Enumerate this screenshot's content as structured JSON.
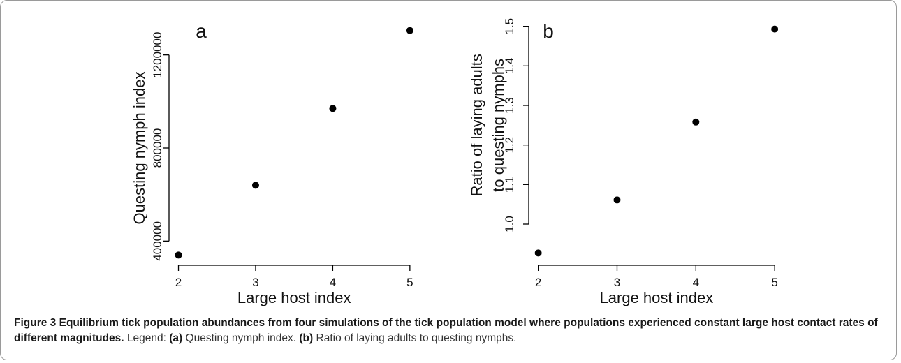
{
  "chart_data": [
    {
      "type": "scatter",
      "panel_label": "a",
      "xlabel": "Large host index",
      "ylabel_lines": [
        "Questing nymph index"
      ],
      "x": [
        2,
        3,
        4,
        5
      ],
      "y": [
        340000,
        640000,
        970000,
        1305000
      ],
      "xticks": [
        "2",
        "3",
        "4",
        "5"
      ],
      "yticks": [
        400000,
        800000,
        1200000
      ],
      "ytick_labels": [
        "400000",
        "800000",
        "1200000"
      ],
      "xlim": [
        1.95,
        5.3
      ],
      "ylim": [
        320000,
        1340000
      ],
      "grid": false,
      "marker_color": "#000000"
    },
    {
      "type": "scatter",
      "panel_label": "b",
      "xlabel": "Large host index",
      "ylabel_lines": [
        "Ratio of laying adults",
        "to questing nymphs"
      ],
      "x": [
        2,
        3,
        4,
        5
      ],
      "y": [
        0.927,
        1.061,
        1.258,
        1.493
      ],
      "xticks": [
        "2",
        "3",
        "4",
        "5"
      ],
      "yticks": [
        1.0,
        1.1,
        1.2,
        1.3,
        1.4,
        1.5
      ],
      "ytick_labels": [
        "1.0",
        "1.1",
        "1.2",
        "1.3",
        "1.4",
        "1.5"
      ],
      "xlim": [
        1.95,
        5.3
      ],
      "ylim": [
        0.91,
        1.51
      ],
      "grid": false,
      "marker_color": "#000000"
    }
  ],
  "caption": {
    "lead": "Figure 3",
    "bold_text": "Equilibrium tick population abundances from four simulations of the tick population model where populations experienced constant large host contact rates of different magnitudes.",
    "legend_prefix": "Legend: ",
    "a_key": "(a)",
    "a_text": "Questing nymph index.",
    "b_key": "(b)",
    "b_text": "Ratio of laying adults to questing nymphs."
  }
}
